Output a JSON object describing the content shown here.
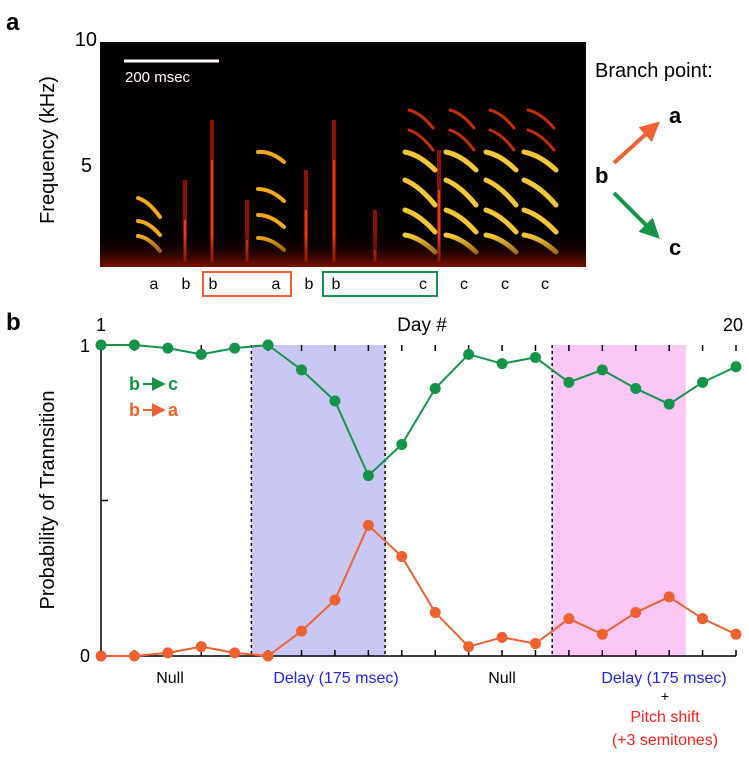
{
  "panel_a": {
    "label": "a",
    "ylabel": "Frequency (kHz)",
    "yticks": [
      "10",
      "5"
    ],
    "scalebar": "200 msec",
    "syllables": [
      "a",
      "b",
      "b",
      "a",
      "b",
      "b",
      "c",
      "c",
      "c",
      "c"
    ],
    "branch_title": "Branch point:",
    "branch_from": "b",
    "branch_to_a": "a",
    "branch_to_c": "c"
  },
  "panel_b": {
    "label": "b",
    "xlabel": "Day #",
    "day_first": "1",
    "day_last": "20",
    "legend_bc_from": "b",
    "legend_bc_to": "c",
    "legend_ba_from": "b",
    "legend_ba_to": "a",
    "condition_labels": {
      "null1": "Null",
      "delay1": "Delay (175 msec)",
      "null2": "Null",
      "delay2": "Delay (175 msec)",
      "plus": "+",
      "pitch": "Pitch shift",
      "semitones": "(+3 semitones)"
    }
  },
  "colors": {
    "green": "#16934a",
    "orange": "#ee6130",
    "blue_text": "#2222dd",
    "red_text": "#ee2222",
    "blue_shade": "#c9c8f5",
    "pink_shade": "#fbc8f6"
  },
  "chart_data": {
    "type": "line",
    "title": "",
    "xlabel": "Day #",
    "ylabel": "Probability of Trannsition",
    "x": [
      1,
      2,
      3,
      4,
      5,
      6,
      7,
      8,
      9,
      10,
      11,
      12,
      13,
      14,
      15,
      16,
      17,
      18,
      19,
      20
    ],
    "xlim": [
      1,
      20
    ],
    "ylim": [
      0,
      1
    ],
    "yticks": [
      0,
      1
    ],
    "series": [
      {
        "name": "b→c",
        "color": "#16934a",
        "values": [
          1.0,
          1.0,
          0.99,
          0.97,
          0.99,
          1.0,
          0.92,
          0.82,
          0.58,
          0.68,
          0.86,
          0.97,
          0.94,
          0.96,
          0.88,
          0.92,
          0.86,
          0.81,
          0.88,
          0.93
        ]
      },
      {
        "name": "b→a",
        "color": "#ee6130",
        "values": [
          0.0,
          0.0,
          0.01,
          0.03,
          0.01,
          0.0,
          0.08,
          0.18,
          0.42,
          0.32,
          0.14,
          0.03,
          0.06,
          0.04,
          0.12,
          0.07,
          0.14,
          0.19,
          0.12,
          0.07
        ]
      }
    ],
    "shaded_regions": [
      {
        "from": 5.5,
        "to": 9.5,
        "color": "#c9c8f5"
      },
      {
        "from": 14.5,
        "to": 18.5,
        "color": "#fbc8f6"
      }
    ],
    "dividers": [
      5.5,
      9.5,
      14.5
    ]
  }
}
